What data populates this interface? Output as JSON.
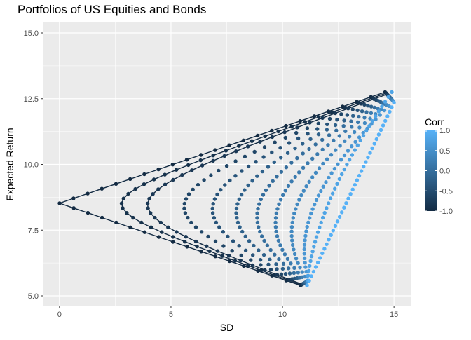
{
  "chart_data": {
    "type": "scatter",
    "title": "Portfolios of US Equities and Bonds",
    "xlabel": "SD",
    "ylabel": "Expected Return",
    "xlim": [
      -0.75,
      15.75
    ],
    "ylim": [
      4.6,
      15.4
    ],
    "xticks": [
      0,
      5,
      10,
      15
    ],
    "yticks": [
      5.0,
      7.5,
      10.0,
      12.5,
      15.0
    ],
    "xtick_labels": [
      "0",
      "5",
      "10",
      "15"
    ],
    "ytick_labels": [
      "5.0",
      "7.5",
      "10.0",
      "12.5",
      "15.0"
    ],
    "grid": true,
    "lines_for_corr": [
      -1.0,
      -0.9,
      -0.8
    ],
    "legend": {
      "title": "Corr",
      "position": "right",
      "ticks": [
        1.0,
        0.5,
        0.0,
        -0.5,
        -1.0
      ],
      "tick_labels": [
        "1.0",
        "0.5",
        "0.0",
        "-0.5",
        "-1.0"
      ],
      "color_low": "#132b43",
      "color_high": "#56b1f7"
    },
    "series": [
      {
        "corr": -1.0,
        "bond": {
          "return": 5.4,
          "sd": 10.8
        },
        "equity": {
          "return": 12.75,
          "sd": 14.6
        }
      },
      {
        "corr": -0.9,
        "bond": {
          "return": 5.42,
          "sd": 10.84
        },
        "equity": {
          "return": 12.71,
          "sd": 14.65
        }
      },
      {
        "corr": -0.8,
        "bond": {
          "return": 5.44,
          "sd": 10.88
        },
        "equity": {
          "return": 12.67,
          "sd": 14.69
        }
      },
      {
        "corr": -0.6,
        "bond": {
          "return": 5.46,
          "sd": 10.92
        },
        "equity": {
          "return": 12.63,
          "sd": 14.73
        }
      },
      {
        "corr": -0.4,
        "bond": {
          "return": 5.48,
          "sd": 10.96
        },
        "equity": {
          "return": 12.59,
          "sd": 14.78
        }
      },
      {
        "corr": -0.2,
        "bond": {
          "return": 5.5,
          "sd": 11.0
        },
        "equity": {
          "return": 12.55,
          "sd": 14.82
        }
      },
      {
        "corr": 0.0,
        "bond": {
          "return": 5.52,
          "sd": 11.04
        },
        "equity": {
          "return": 12.51,
          "sd": 14.86
        }
      },
      {
        "corr": 0.2,
        "bond": {
          "return": 5.54,
          "sd": 11.08
        },
        "equity": {
          "return": 12.47,
          "sd": 14.9
        }
      },
      {
        "corr": 0.4,
        "bond": {
          "return": 5.56,
          "sd": 11.12
        },
        "equity": {
          "return": 12.43,
          "sd": 14.94
        }
      },
      {
        "corr": 0.6,
        "bond": {
          "return": 5.58,
          "sd": 11.16
        },
        "equity": {
          "return": 12.39,
          "sd": 14.98
        }
      },
      {
        "corr": 0.8,
        "bond": {
          "return": 5.4,
          "sd": 11.1
        },
        "equity": {
          "return": 12.75,
          "sd": 14.9
        }
      },
      {
        "corr": 1.0,
        "bond": {
          "return": 5.4,
          "sd": 11.1
        },
        "equity": {
          "return": 12.35,
          "sd": 15.0
        }
      }
    ]
  }
}
